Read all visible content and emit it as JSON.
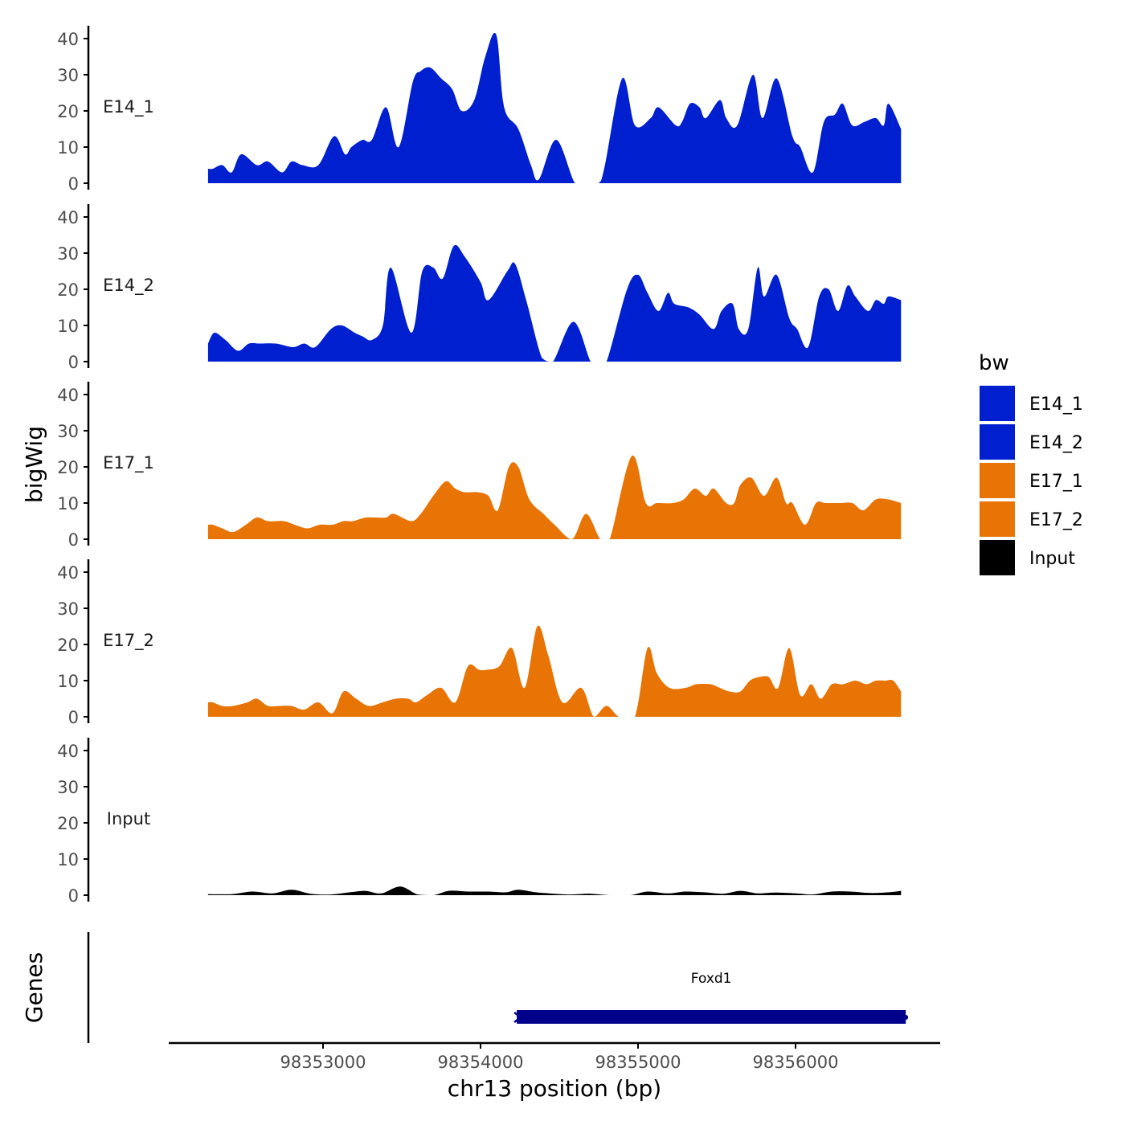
{
  "chart_data": {
    "type": "area",
    "title": "",
    "ylabel": "bigWig",
    "xlabel": "chr13 position (bp)",
    "x_ticks": [
      98353000,
      98354000,
      98355000,
      98356000
    ],
    "x_tick_labels": [
      "98353000",
      "98354000",
      "98355000",
      "98356000"
    ],
    "xlim": [
      98352000,
      98356900
    ],
    "ylim": [
      0,
      42
    ],
    "y_ticks": [
      0,
      10,
      20,
      30,
      40
    ],
    "y_tick_labels": [
      "0",
      "10",
      "20",
      "30",
      "40"
    ],
    "colors": {
      "E14_1": "#0020d0",
      "E14_2": "#0020d0",
      "E17_1": "#e87405",
      "E17_2": "#e87405",
      "Input": "#000000",
      "gene": "#00008b",
      "axis": "#000000",
      "tick_text": "#4d4d4d"
    },
    "legend": {
      "title": "bw",
      "entries": [
        "E14_1",
        "E14_2",
        "E17_1",
        "E17_2",
        "Input"
      ]
    },
    "genes_track_label": "Genes",
    "genes": [
      {
        "name": "Foxd1",
        "start": 98354230,
        "end": 98356700,
        "strand": "-"
      }
    ],
    "series": [
      {
        "name": "E14_1",
        "x": [
          98352270,
          98352300,
          98352360,
          98352420,
          98352480,
          98352580,
          98352650,
          98352740,
          98352800,
          98352870,
          98352970,
          98353070,
          98353140,
          98353180,
          98353250,
          98353310,
          98353400,
          98353480,
          98353570,
          98353620,
          98353680,
          98353750,
          98353820,
          98353880,
          98353960,
          98354030,
          98354100,
          98354150,
          98354240,
          98354320,
          98354370,
          98354480,
          98354600,
          98354680,
          98354750,
          98354790,
          98354900,
          98354980,
          98355080,
          98355130,
          98355240,
          98355280,
          98355330,
          98355390,
          98355430,
          98355520,
          98355560,
          98355630,
          98355730,
          98355790,
          98355880,
          98355980,
          98356030,
          98356110,
          98356180,
          98356250,
          98356300,
          98356360,
          98356440,
          98356510,
          98356560,
          98356590,
          98356670
        ],
        "y": [
          4,
          4,
          5,
          3,
          8,
          5,
          6,
          3,
          6,
          5,
          5,
          13,
          8,
          10,
          12,
          12,
          21,
          10,
          28,
          31,
          32,
          29,
          26,
          20,
          23,
          35,
          41,
          21,
          15,
          5,
          1,
          12,
          0,
          0,
          0,
          5,
          29,
          16,
          18,
          21,
          16,
          17,
          22,
          21,
          18,
          23,
          18,
          16,
          30,
          18,
          29,
          13,
          10,
          3,
          17,
          19,
          22,
          16,
          17,
          18,
          16,
          22,
          15
        ]
      },
      {
        "name": "E14_2",
        "x": [
          98352270,
          98352310,
          98352380,
          98352460,
          98352530,
          98352600,
          98352700,
          98352810,
          98352880,
          98352950,
          98353050,
          98353120,
          98353200,
          98353250,
          98353310,
          98353380,
          98353430,
          98353560,
          98353630,
          98353700,
          98353760,
          98353830,
          98353900,
          98354000,
          98354050,
          98354170,
          98354220,
          98354290,
          98354390,
          98354460,
          98354590,
          98354700,
          98354750,
          98354800,
          98354930,
          98355000,
          98355060,
          98355130,
          98355190,
          98355230,
          98355320,
          98355390,
          98355480,
          98355530,
          98355600,
          98355640,
          98355700,
          98355760,
          98355800,
          98355880,
          98355960,
          98356010,
          98356080,
          98356150,
          98356210,
          98356270,
          98356330,
          98356380,
          98356460,
          98356510,
          98356560,
          98356590,
          98356670
        ],
        "y": [
          5,
          8,
          6,
          3,
          5,
          5,
          5,
          4,
          5,
          4,
          9,
          10,
          8,
          7,
          6,
          10,
          26,
          8,
          25,
          26,
          23,
          32,
          29,
          22,
          17,
          25,
          27,
          17,
          1,
          0,
          11,
          0,
          0,
          0,
          20,
          24,
          19,
          14,
          19,
          16,
          15,
          13,
          9,
          14,
          16,
          9,
          9,
          26,
          18,
          24,
          12,
          9,
          4,
          18,
          20,
          14,
          21,
          18,
          14,
          17,
          16,
          18,
          17
        ]
      },
      {
        "name": "E17_1",
        "x": [
          98352270,
          98352300,
          98352360,
          98352430,
          98352510,
          98352580,
          98352650,
          98352750,
          98352820,
          98352900,
          98352980,
          98353060,
          98353130,
          98353190,
          98353270,
          98353330,
          98353400,
          98353450,
          98353560,
          98353620,
          98353700,
          98353780,
          98353840,
          98353900,
          98353980,
          98354050,
          98354110,
          98354180,
          98354240,
          98354310,
          98354400,
          98354470,
          98354580,
          98354670,
          98354760,
          98354820,
          98354960,
          98355050,
          98355120,
          98355220,
          98355290,
          98355360,
          98355430,
          98355480,
          98355560,
          98355610,
          98355650,
          98355720,
          98355800,
          98355880,
          98355940,
          98355980,
          98356060,
          98356130,
          98356190,
          98356280,
          98356360,
          98356430,
          98356510,
          98356590,
          98356670
        ],
        "y": [
          4,
          4,
          3,
          2,
          4,
          6,
          5,
          5,
          4,
          3,
          4,
          4,
          5,
          5,
          6,
          6,
          6,
          7,
          5,
          7,
          12,
          16,
          14,
          13,
          13,
          12,
          8,
          20,
          20,
          11,
          7,
          4,
          0,
          7,
          0,
          0,
          23,
          10,
          10,
          10,
          11,
          14,
          12,
          14,
          10,
          10,
          15,
          17,
          12,
          17,
          10,
          10,
          4,
          10,
          10,
          10,
          10,
          8,
          11,
          11,
          10
        ]
      },
      {
        "name": "E17_2",
        "x": [
          98352270,
          98352300,
          98352360,
          98352430,
          98352520,
          98352580,
          98352650,
          98352720,
          98352800,
          98352880,
          98352970,
          98353060,
          98353130,
          98353210,
          98353290,
          98353380,
          98353460,
          98353540,
          98353590,
          98353660,
          98353750,
          98353840,
          98353920,
          98353990,
          98354040,
          98354120,
          98354200,
          98354280,
          98354360,
          98354430,
          98354520,
          98354640,
          98354720,
          98354800,
          98354880,
          98354980,
          98355060,
          98355120,
          98355200,
          98355300,
          98355370,
          98355460,
          98355520,
          98355580,
          98355650,
          98355710,
          98355770,
          98355830,
          98355890,
          98355960,
          98356030,
          98356100,
          98356160,
          98356230,
          98356300,
          98356380,
          98356450,
          98356510,
          98356570,
          98356620,
          98356670
        ],
        "y": [
          4,
          4,
          3,
          3,
          4,
          5,
          3,
          3,
          3,
          2,
          4,
          1,
          7,
          5,
          3,
          4,
          5,
          5,
          4,
          6,
          8,
          4,
          14,
          13,
          13,
          14,
          19,
          8,
          25,
          17,
          4,
          8,
          0,
          3,
          0,
          0,
          19,
          12,
          8,
          8,
          9,
          9,
          8,
          7,
          7,
          10,
          11,
          11,
          8,
          19,
          6,
          9,
          5,
          9,
          9,
          10,
          9,
          10,
          10,
          10,
          7
        ]
      },
      {
        "name": "Input",
        "x": [
          98352270,
          98352420,
          98352550,
          98352680,
          98352800,
          98352920,
          98353050,
          98353170,
          98353270,
          98353370,
          98353490,
          98353600,
          98353700,
          98353800,
          98353920,
          98354050,
          98354160,
          98354240,
          98354350,
          98354470,
          98354580,
          98354700,
          98354820,
          98354950,
          98355060,
          98355190,
          98355300,
          98355420,
          98355540,
          98355650,
          98355760,
          98355870,
          98356000,
          98356110,
          98356230,
          98356350,
          98356470,
          98356590,
          98356670
        ],
        "y": [
          0.3,
          0.3,
          1.0,
          0.5,
          1.5,
          0.4,
          0.2,
          0.8,
          1.2,
          0.5,
          2.4,
          0.2,
          0,
          1.2,
          1.0,
          1.0,
          0.8,
          1.5,
          0.8,
          0.4,
          0.2,
          0.4,
          0,
          0,
          1.0,
          0.5,
          1.0,
          0.8,
          0.4,
          1.2,
          0.5,
          0.7,
          0.5,
          0.2,
          1.0,
          1.0,
          0.6,
          0.8,
          1.2
        ]
      }
    ]
  }
}
